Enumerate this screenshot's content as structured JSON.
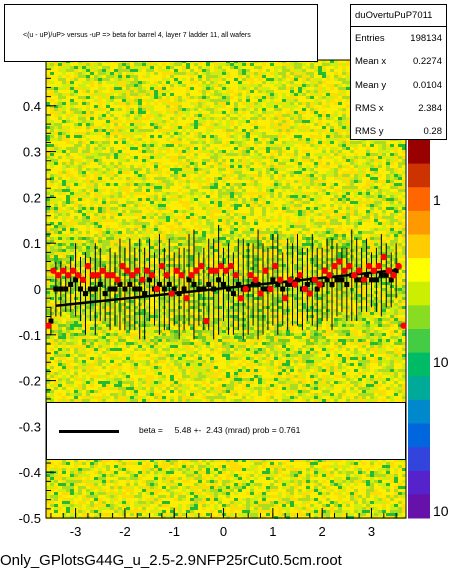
{
  "title": "<(u - uP)/uP> versus -uP => beta for barrel 4, layer 7 ladder 11, all wafers",
  "filename": "Only_GPlotsG44G_u_2.5-2.9NFP25rCut0.5cm.root",
  "stats": {
    "name": "duOvertuPuP7011",
    "rows": [
      {
        "label": "Entries",
        "value": "198134"
      },
      {
        "label": "Mean x",
        "value": "0.2274"
      },
      {
        "label": "Mean y",
        "value": "0.0104"
      },
      {
        "label": "RMS x",
        "value": "2.384"
      },
      {
        "label": "RMS y",
        "value": "0.28"
      }
    ]
  },
  "fit": {
    "text": "beta =     5.48 +-  2.43 (mrad) prob = 0.761"
  },
  "palette_labels": [
    "1",
    "10",
    "10"
  ],
  "colors": {
    "heat_low": "#ffee00",
    "heat_mid": "#aadd22",
    "heat_high": "#22bb33",
    "red_marker": "#ff0000",
    "black_marker": "#000000"
  },
  "chart_data": {
    "type": "scatter",
    "xlim": [
      -3.6,
      3.7
    ],
    "ylim": [
      -0.5,
      0.5
    ],
    "x_ticks": [
      -3,
      -2,
      -1,
      0,
      1,
      2,
      3
    ],
    "y_ticks": [
      -0.5,
      -0.4,
      -0.3,
      -0.2,
      -0.1,
      0,
      0.1,
      0.2,
      0.3,
      0.4
    ],
    "series": [
      {
        "marker": "black",
        "x": [
          -3.5,
          -3.4,
          -3.3,
          -3.2,
          -3.1,
          -3.0,
          -2.9,
          -2.8,
          -2.7,
          -2.6,
          -2.5,
          -2.4,
          -2.3,
          -2.2,
          -2.1,
          -2.0,
          -1.9,
          -1.8,
          -1.7,
          -1.6,
          -1.5,
          -1.4,
          -1.3,
          -1.2,
          -1.1,
          -1.0,
          -0.9,
          -0.8,
          -0.7,
          -0.6,
          -0.5,
          -0.4,
          -0.3,
          -0.2,
          -0.1,
          0.0,
          0.1,
          0.2,
          0.3,
          0.4,
          0.5,
          0.6,
          0.7,
          0.8,
          0.9,
          1.0,
          1.1,
          1.2,
          1.3,
          1.4,
          1.5,
          1.6,
          1.7,
          1.8,
          1.9,
          2.0,
          2.1,
          2.2,
          2.3,
          2.4,
          2.5,
          2.6,
          2.7,
          2.8,
          2.9,
          3.0,
          3.1,
          3.2,
          3.3,
          3.4,
          3.5
        ],
        "y": [
          -0.07,
          0.0,
          0.0,
          0.0,
          0.01,
          0.02,
          0.0,
          -0.01,
          0.0,
          0.0,
          0.01,
          -0.01,
          0.0,
          0.0,
          0.01,
          0.0,
          0.01,
          0.0,
          0.0,
          -0.01,
          0.02,
          0.0,
          0.01,
          0.0,
          0.01,
          0.0,
          -0.01,
          0.0,
          0.02,
          0.01,
          0.0,
          0.0,
          0.01,
          0.0,
          0.02,
          0.01,
          0.0,
          -0.01,
          0.01,
          0.0,
          0.0,
          0.01,
          0.01,
          0.0,
          0.0,
          0.02,
          0.01,
          0.0,
          0.01,
          0.01,
          0.02,
          0.0,
          0.01,
          0.02,
          0.0,
          0.01,
          0.02,
          0.01,
          0.02,
          0.02,
          0.01,
          0.03,
          0.02,
          0.02,
          0.03,
          0.02,
          0.02,
          0.03,
          0.03,
          0.02,
          0.04
        ],
        "err": [
          0.03,
          0.06,
          0.06,
          0.05,
          0.06,
          0.08,
          0.07,
          0.09,
          0.07,
          0.1,
          0.08,
          0.06,
          0.09,
          0.08,
          0.1,
          0.09,
          0.1,
          0.09,
          0.11,
          0.1,
          0.09,
          0.08,
          0.11,
          0.09,
          0.1,
          0.08,
          0.1,
          0.09,
          0.1,
          0.12,
          0.08,
          0.09,
          0.1,
          0.11,
          0.12,
          0.08,
          0.1,
          0.09,
          0.1,
          0.11,
          0.1,
          0.09,
          0.12,
          0.1,
          0.09,
          0.1,
          0.11,
          0.08,
          0.1,
          0.09,
          0.1,
          0.09,
          0.08,
          0.1,
          0.09,
          0.08,
          0.09,
          0.1,
          0.08,
          0.07,
          0.08,
          0.1,
          0.09,
          0.07,
          0.08,
          0.06,
          0.07,
          0.09,
          0.07,
          0.06,
          0.06
        ]
      },
      {
        "marker": "red",
        "x": [
          -3.55,
          -3.45,
          -3.35,
          -3.25,
          -3.15,
          -3.05,
          -2.95,
          -2.85,
          -2.75,
          -2.65,
          -2.55,
          -2.45,
          -2.35,
          -2.25,
          -2.15,
          -2.05,
          -1.95,
          -1.85,
          -1.75,
          -1.65,
          -1.55,
          -1.45,
          -1.35,
          -1.25,
          -1.15,
          -1.05,
          -0.95,
          -0.85,
          -0.75,
          -0.65,
          -0.55,
          -0.45,
          -0.35,
          -0.25,
          -0.15,
          -0.05,
          0.05,
          0.15,
          0.25,
          0.35,
          0.45,
          0.55,
          0.65,
          0.75,
          0.85,
          0.95,
          1.05,
          1.15,
          1.25,
          1.35,
          1.45,
          1.55,
          1.65,
          1.75,
          1.85,
          1.95,
          2.05,
          2.15,
          2.25,
          2.35,
          2.45,
          2.55,
          2.65,
          2.75,
          2.85,
          2.95,
          3.05,
          3.15,
          3.25,
          3.35,
          3.45,
          3.55,
          3.65
        ],
        "y": [
          -0.08,
          0.04,
          0.03,
          0.04,
          0.03,
          0.04,
          0.03,
          0.02,
          0.05,
          0.03,
          0.03,
          0.04,
          0.03,
          0.03,
          0.02,
          0.05,
          0.04,
          0.03,
          0.04,
          0.02,
          0.04,
          0.03,
          0.0,
          0.05,
          0.03,
          -0.01,
          0.04,
          0.03,
          -0.02,
          0.03,
          0.04,
          0.05,
          -0.07,
          0.04,
          0.04,
          0.05,
          0.04,
          0.05,
          0.03,
          -0.02,
          0.0,
          0.03,
          0.02,
          -0.01,
          0.04,
          0.0,
          0.05,
          0.02,
          -0.02,
          0.02,
          0.01,
          0.03,
          0.0,
          -0.01,
          0.02,
          0.01,
          0.04,
          0.03,
          0.05,
          0.06,
          0.04,
          0.05,
          0.03,
          0.04,
          0.02,
          0.05,
          0.04,
          0.05,
          0.07,
          0.04,
          0.03,
          0.05,
          -0.08
        ]
      }
    ],
    "fit_line": {
      "slope": 0.00548,
      "intercept": 0.012
    }
  }
}
